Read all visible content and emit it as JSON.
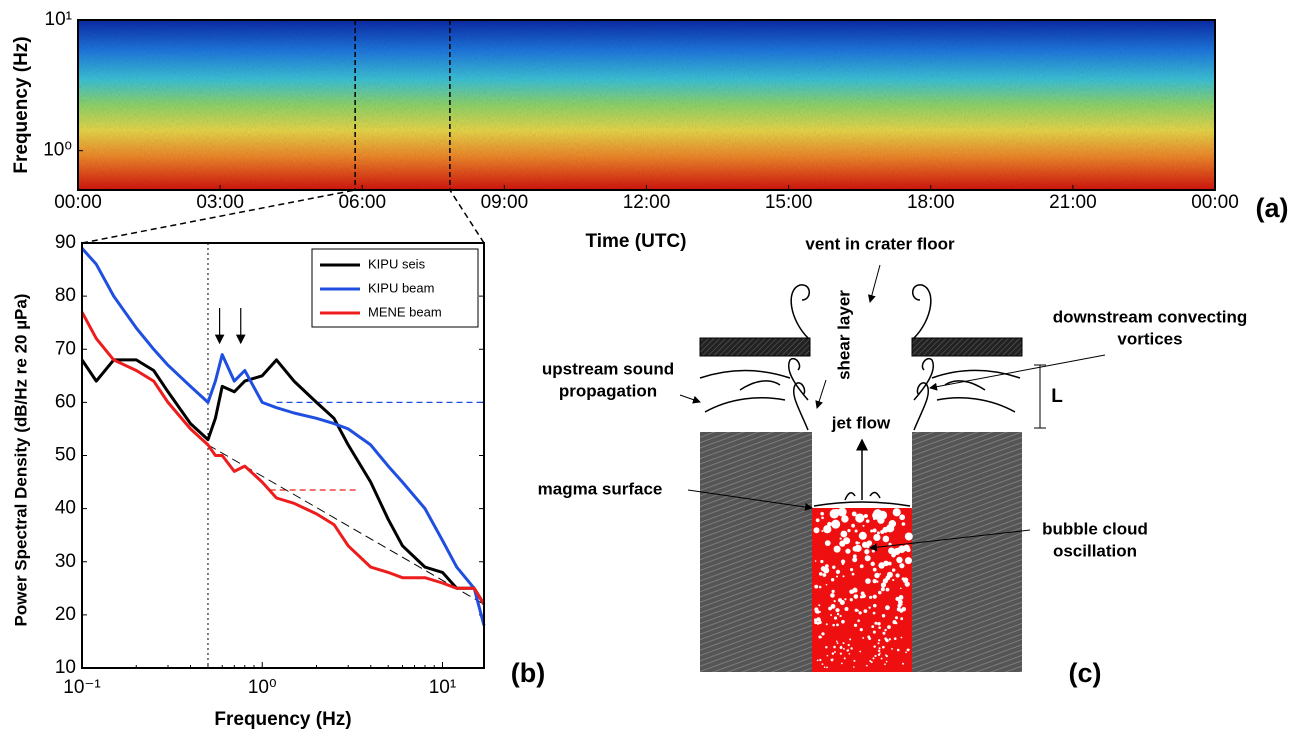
{
  "chart_data": [
    {
      "type": "spectrogram",
      "panel_label": "(a)",
      "xlabel": "Time (UTC)",
      "ylabel": "Frequency (Hz)",
      "xlim": [
        0,
        24
      ],
      "xticks": [
        {
          "value": 0,
          "label": "00:00"
        },
        {
          "value": 3,
          "label": "03:00"
        },
        {
          "value": 6,
          "label": "06:00"
        },
        {
          "value": 9,
          "label": "09:00"
        },
        {
          "value": 12,
          "label": "12:00"
        },
        {
          "value": 15,
          "label": "15:00"
        },
        {
          "value": 18,
          "label": "18:00"
        },
        {
          "value": 21,
          "label": "21:00"
        },
        {
          "value": 24,
          "label": "00:00"
        }
      ],
      "ylim": [
        0.5,
        10
      ],
      "log_y": true,
      "yticks": [
        {
          "value": 1,
          "label": "10⁰"
        },
        {
          "value": 10,
          "label": "10¹"
        }
      ],
      "window": [
        5.85,
        7.85
      ]
    },
    {
      "type": "line",
      "panel_label": "(b)",
      "xlabel": "Frequency (Hz)",
      "ylabel": "Power Spectral Density (dB/Hz re 20 µPa)",
      "log_x": true,
      "xlim": [
        0.1,
        17
      ],
      "xticks": [
        {
          "value": 0.1,
          "label": "10⁻¹"
        },
        {
          "value": 1,
          "label": "10⁰"
        },
        {
          "value": 10,
          "label": "10¹"
        }
      ],
      "ylim": [
        10,
        90
      ],
      "yticks": [
        10,
        20,
        30,
        40,
        50,
        60,
        70,
        80,
        90
      ],
      "legend": "upper right",
      "x": [
        0.1,
        0.12,
        0.15,
        0.2,
        0.25,
        0.3,
        0.4,
        0.5,
        0.55,
        0.6,
        0.7,
        0.8,
        1,
        1.2,
        1.5,
        2,
        2.5,
        3,
        4,
        5,
        6,
        8,
        10,
        12,
        15,
        17
      ],
      "series": [
        {
          "name": "KIPU seis",
          "color": "#000000",
          "values": [
            68,
            64,
            68,
            68,
            66,
            62,
            56,
            53,
            57,
            63,
            62,
            64,
            65,
            68,
            64,
            60,
            57,
            52,
            45,
            38,
            33,
            29,
            28,
            25,
            25,
            22
          ]
        },
        {
          "name": "KIPU beam",
          "color": "#1f4fe0",
          "values": [
            89,
            86,
            80,
            74,
            70,
            67,
            63,
            60,
            64,
            69,
            64,
            66,
            60,
            59,
            58,
            57,
            56,
            55,
            52,
            48,
            45,
            40,
            34,
            29,
            25,
            18
          ]
        },
        {
          "name": "MENE beam",
          "color": "#ee1c1c",
          "values": [
            77,
            72,
            68,
            66,
            64,
            60,
            55,
            52,
            50,
            50,
            47,
            48,
            45,
            42,
            41,
            39,
            37,
            33,
            29,
            28,
            27,
            27,
            26,
            25,
            25,
            22
          ]
        }
      ],
      "vline": 0.5,
      "hlines": [
        {
          "value": 60,
          "from": 1.2,
          "to": 17,
          "color": "#1f4fe0"
        },
        {
          "value": 43.5,
          "from": 1.1,
          "to": 3.3,
          "color": "#ee1c1c"
        }
      ],
      "trend": {
        "x": [
          0.5,
          17
        ],
        "y": [
          52,
          22
        ]
      },
      "arrows": [
        0.58,
        0.76
      ]
    }
  ],
  "diagram": {
    "panel_label": "(c)",
    "labels": {
      "vent": "vent in crater floor",
      "shear": "shear layer",
      "downstream": [
        "downstream convecting",
        "vortices"
      ],
      "upstream": [
        "upstream sound",
        "propagation"
      ],
      "length": "L",
      "jet": "jet flow",
      "magma": "magma surface",
      "bubble": [
        "bubble cloud",
        "oscillation"
      ]
    }
  }
}
